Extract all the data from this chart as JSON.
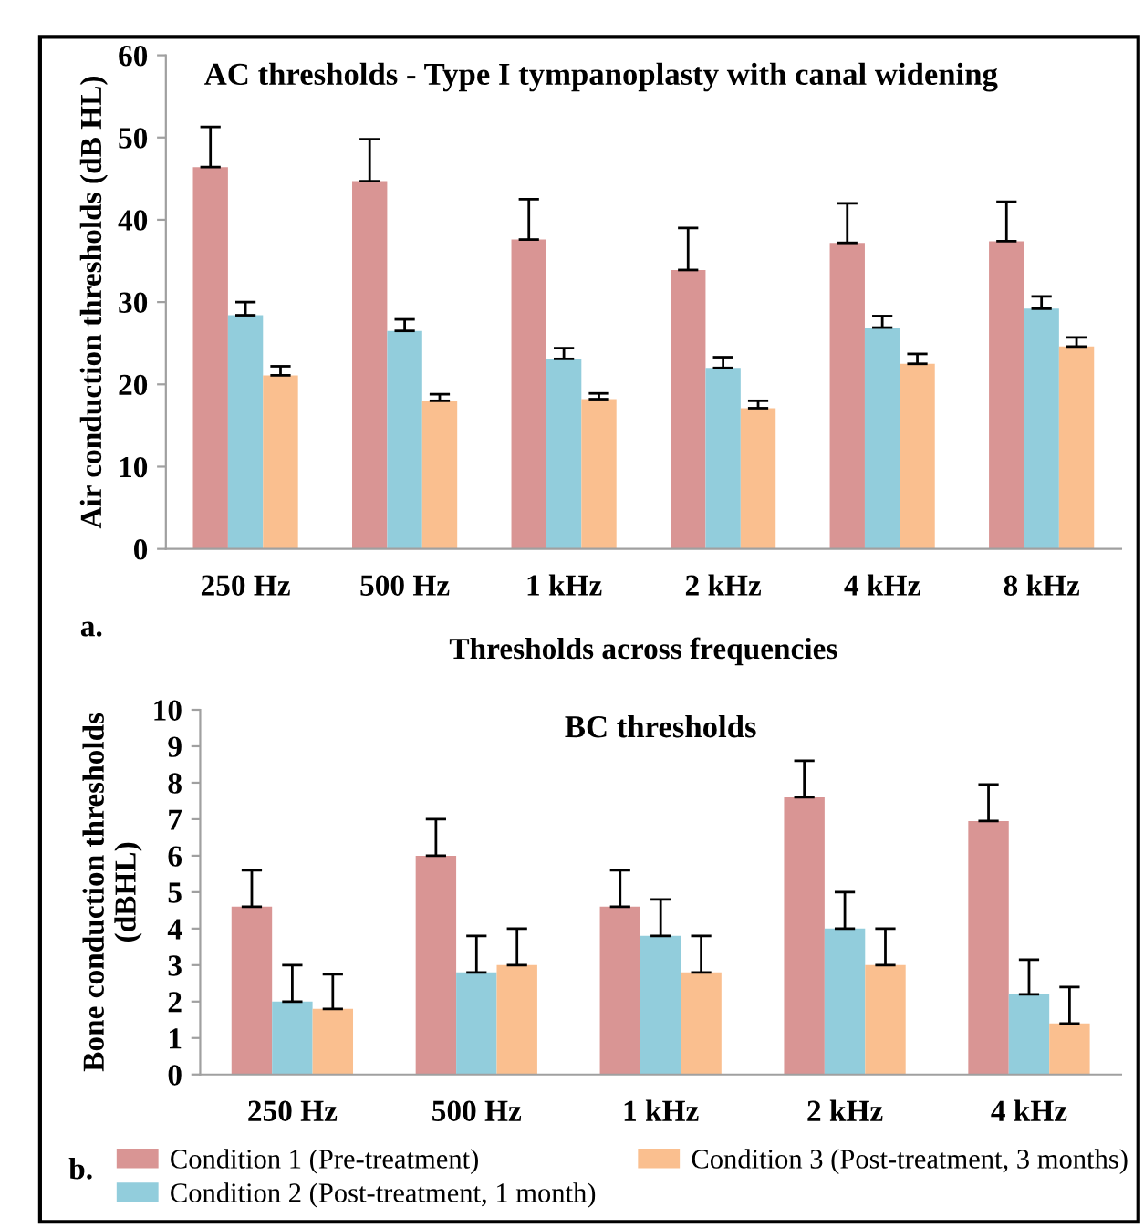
{
  "chart_data": [
    {
      "type": "bar",
      "title": "AC thresholds - Type I tympanoplasty with canal widening",
      "xlabel": "Thresholds across frequencies",
      "ylabel": "Air conduction thresholds (dB HL)",
      "annotations": [
        "a."
      ],
      "categories": [
        "250 Hz",
        "500 Hz",
        "1 kHz",
        "2 kHz",
        "4 kHz",
        "8 kHz"
      ],
      "ylim": [
        0,
        60
      ],
      "yticks": [
        0,
        10,
        20,
        30,
        40,
        50,
        60
      ],
      "grid": false,
      "legend": false,
      "series": [
        {
          "color": "#d99594",
          "values": [
            46.4,
            44.7,
            37.6,
            33.9,
            37.2,
            37.4
          ],
          "errors": [
            [
              46.4,
              51.3
            ],
            [
              44.7,
              49.8
            ],
            [
              37.6,
              42.5
            ],
            [
              33.9,
              39.0
            ],
            [
              37.2,
              42.0
            ],
            [
              37.4,
              42.2
            ]
          ]
        },
        {
          "color": "#92cddc",
          "values": [
            28.4,
            26.5,
            23.1,
            22.0,
            26.9,
            29.2
          ],
          "errors": [
            [
              28.4,
              30.0
            ],
            [
              26.5,
              27.9
            ],
            [
              23.1,
              24.4
            ],
            [
              22.0,
              23.3
            ],
            [
              26.9,
              28.3
            ],
            [
              29.2,
              30.7
            ]
          ]
        },
        {
          "color": "#fabf8f",
          "values": [
            21.1,
            18.0,
            18.2,
            17.1,
            22.5,
            24.6
          ],
          "errors": [
            [
              21.1,
              22.2
            ],
            [
              18.0,
              18.8
            ],
            [
              18.2,
              18.9
            ],
            [
              17.1,
              18.0
            ],
            [
              22.5,
              23.7
            ],
            [
              24.6,
              25.7
            ]
          ]
        }
      ]
    },
    {
      "type": "bar",
      "title": "BC thresholds",
      "ylabel": "Bone conduction thresholds\n(dBHL)",
      "annotations": [
        "b."
      ],
      "categories": [
        "250 Hz",
        "500 Hz",
        "1 kHz",
        "2 kHz",
        "4 kHz"
      ],
      "ylim": [
        0,
        10
      ],
      "yticks": [
        0,
        1,
        2,
        3,
        4,
        5,
        6,
        7,
        8,
        9,
        10
      ],
      "grid": false,
      "legend": "bottom",
      "series": [
        {
          "name": "Condition 1 (Pre-treatment)",
          "color": "#d99594",
          "values": [
            4.6,
            6.0,
            4.6,
            7.6,
            6.95
          ],
          "errors": [
            [
              4.6,
              5.6
            ],
            [
              6.0,
              7.0
            ],
            [
              4.6,
              5.6
            ],
            [
              7.6,
              8.6
            ],
            [
              6.95,
              7.95
            ]
          ]
        },
        {
          "name": "Condition 2 (Post-treatment, 1 month)",
          "color": "#92cddc",
          "values": [
            2.0,
            2.8,
            3.8,
            4.0,
            2.2
          ],
          "errors": [
            [
              2.0,
              3.0
            ],
            [
              2.8,
              3.8
            ],
            [
              3.8,
              4.8
            ],
            [
              4.0,
              5.0
            ],
            [
              2.2,
              3.15
            ]
          ]
        },
        {
          "name": "Condition 3 (Post-treatment, 3 months)",
          "color": "#fabf8f",
          "values": [
            1.8,
            3.0,
            2.8,
            3.0,
            1.4
          ],
          "errors": [
            [
              1.8,
              2.75
            ],
            [
              3.0,
              4.0
            ],
            [
              2.8,
              3.8
            ],
            [
              3.0,
              4.0
            ],
            [
              1.4,
              2.4
            ]
          ]
        }
      ]
    }
  ]
}
